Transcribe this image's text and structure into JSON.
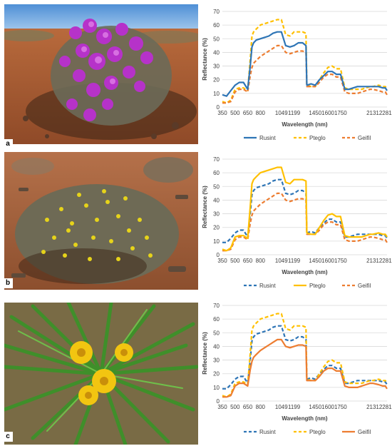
{
  "colors": {
    "Rusint": "#2e75b6",
    "Pteglo": "#ffc000",
    "Geifil": "#ed7d31"
  },
  "panels": [
    {
      "letter": "a",
      "photo": "purple flowering shrub in arid red-soil landscape",
      "chart_data": {
        "type": "line",
        "xlabel": "Wavelength (nm)",
        "ylabel": "Reflectance (%)",
        "ylim": [
          0,
          70
        ],
        "yticks": [
          0,
          10,
          20,
          30,
          40,
          50,
          60,
          70
        ],
        "xlim": [
          350,
          2300
        ],
        "xticks": [
          350,
          500,
          650,
          800,
          1049,
          1199,
          1450,
          1600,
          1750,
          2131,
          2281
        ],
        "xtick_labels": [
          "350",
          "500",
          "650",
          "800",
          "1049",
          "1199",
          "1450",
          "1600",
          "1750",
          "2131",
          "2281"
        ],
        "legend_position": "bottom",
        "series": [
          {
            "name": "Rusint",
            "style": "solid",
            "x": [
              350,
              400,
              450,
              500,
              550,
              600,
              650,
              680,
              700,
              720,
              750,
              800,
              850,
              900,
              950,
              1000,
              1049,
              1100,
              1150,
              1199,
              1250,
              1300,
              1340,
              1350,
              1400,
              1450,
              1500,
              1550,
              1600,
              1650,
              1700,
              1750,
              1800,
              1850,
              1950,
              2000,
              2050,
              2100,
              2131,
              2200,
              2250,
              2281,
              2300
            ],
            "y": [
              9,
              8,
              12,
              16,
              18,
              18,
              13,
              30,
              44,
              47,
              49,
              50,
              51,
              52,
              54,
              55,
              55,
              45,
              44,
              45,
              47,
              47,
              45,
              16,
              17,
              16,
              20,
              23,
              26,
              26,
              24,
              24,
              13,
              13,
              15,
              15,
              15,
              15,
              15,
              15,
              14,
              14,
              12
            ]
          },
          {
            "name": "Pteglo",
            "style": "dashed",
            "x": [
              350,
              400,
              450,
              500,
              550,
              600,
              650,
              680,
              700,
              720,
              750,
              800,
              850,
              900,
              950,
              1000,
              1049,
              1100,
              1150,
              1199,
              1250,
              1300,
              1340,
              1350,
              1400,
              1450,
              1500,
              1550,
              1600,
              1650,
              1700,
              1750,
              1800,
              1850,
              1950,
              2000,
              2050,
              2100,
              2131,
              2200,
              2250,
              2281,
              2300
            ],
            "y": [
              4,
              3,
              5,
              13,
              14,
              14,
              12,
              35,
              52,
              55,
              57,
              60,
              61,
              62,
              63,
              64,
              64,
              53,
              52,
              55,
              55,
              55,
              54,
              16,
              15,
              15,
              20,
              25,
              29,
              30,
              28,
              28,
              14,
              13,
              13,
              13,
              14,
              15,
              15,
              16,
              15,
              15,
              13
            ]
          },
          {
            "name": "Geifil",
            "style": "dashed",
            "x": [
              350,
              400,
              450,
              500,
              550,
              600,
              650,
              680,
              700,
              720,
              750,
              800,
              850,
              900,
              950,
              1000,
              1049,
              1100,
              1150,
              1199,
              1250,
              1300,
              1340,
              1350,
              1400,
              1450,
              1500,
              1550,
              1600,
              1650,
              1700,
              1750,
              1800,
              1850,
              1950,
              2000,
              2050,
              2100,
              2131,
              2200,
              2250,
              2281,
              2300
            ],
            "y": [
              3,
              3,
              4,
              11,
              13,
              13,
              11,
              23,
              29,
              32,
              34,
              37,
              39,
              41,
              43,
              45,
              45,
              40,
              39,
              40,
              41,
              41,
              40,
              15,
              15,
              15,
              18,
              22,
              24,
              24,
              22,
              22,
              11,
              10,
              10,
              11,
              12,
              13,
              13,
              12,
              11,
              11,
              9
            ]
          }
        ]
      }
    },
    {
      "letter": "b",
      "photo": "yellow flowering shrub in arid stony landscape",
      "chart_data": {
        "type": "line",
        "xlabel": "Wavelength (nm)",
        "ylabel": "Reflectance (%)",
        "ylim": [
          0,
          70
        ],
        "yticks": [
          0,
          10,
          20,
          30,
          40,
          50,
          60,
          70
        ],
        "xlim": [
          350,
          2300
        ],
        "xticks": [
          350,
          500,
          650,
          800,
          1049,
          1199,
          1450,
          1600,
          1750,
          2131,
          2281
        ],
        "xtick_labels": [
          "350",
          "500",
          "650",
          "800",
          "1049",
          "1199",
          "1450",
          "1600",
          "1750",
          "2131",
          "2281"
        ],
        "legend_position": "bottom",
        "series": [
          {
            "name": "Rusint",
            "style": "dashed",
            "x": [
              350,
              400,
              450,
              500,
              550,
              600,
              650,
              680,
              700,
              720,
              750,
              800,
              850,
              900,
              950,
              1000,
              1049,
              1100,
              1150,
              1199,
              1250,
              1300,
              1340,
              1350,
              1400,
              1450,
              1500,
              1550,
              1600,
              1650,
              1700,
              1750,
              1800,
              1850,
              1950,
              2000,
              2050,
              2100,
              2131,
              2200,
              2250,
              2281,
              2300
            ],
            "y": [
              9,
              9,
              12,
              16,
              18,
              18,
              13,
              30,
              44,
              47,
              49,
              50,
              51,
              52,
              54,
              55,
              55,
              45,
              44,
              45,
              47,
              47,
              45,
              16,
              17,
              16,
              20,
              23,
              26,
              26,
              24,
              24,
              13,
              13,
              15,
              15,
              15,
              15,
              15,
              15,
              14,
              14,
              12
            ]
          },
          {
            "name": "Pteglo",
            "style": "solid",
            "x": [
              350,
              400,
              450,
              500,
              550,
              600,
              650,
              680,
              700,
              720,
              750,
              800,
              850,
              900,
              950,
              1000,
              1049,
              1100,
              1150,
              1199,
              1250,
              1300,
              1340,
              1350,
              1400,
              1450,
              1500,
              1550,
              1600,
              1650,
              1700,
              1750,
              1800,
              1850,
              1950,
              2000,
              2050,
              2100,
              2131,
              2200,
              2250,
              2281,
              2300
            ],
            "y": [
              4,
              3,
              5,
              13,
              14,
              14,
              12,
              35,
              52,
              55,
              57,
              60,
              61,
              62,
              63,
              64,
              64,
              53,
              52,
              55,
              55,
              55,
              54,
              16,
              15,
              15,
              20,
              25,
              29,
              30,
              28,
              28,
              14,
              13,
              13,
              13,
              14,
              15,
              15,
              16,
              15,
              15,
              13
            ]
          },
          {
            "name": "Geifil",
            "style": "dashed",
            "x": [
              350,
              400,
              450,
              500,
              550,
              600,
              650,
              680,
              700,
              720,
              750,
              800,
              850,
              900,
              950,
              1000,
              1049,
              1100,
              1150,
              1199,
              1250,
              1300,
              1340,
              1350,
              1400,
              1450,
              1500,
              1550,
              1600,
              1650,
              1700,
              1750,
              1800,
              1850,
              1950,
              2000,
              2050,
              2100,
              2131,
              2200,
              2250,
              2281,
              2300
            ],
            "y": [
              3,
              3,
              4,
              11,
              13,
              13,
              11,
              23,
              29,
              32,
              34,
              37,
              39,
              41,
              43,
              45,
              45,
              40,
              39,
              40,
              41,
              41,
              40,
              15,
              15,
              15,
              18,
              22,
              24,
              24,
              22,
              22,
              11,
              10,
              10,
              11,
              12,
              13,
              13,
              12,
              11,
              11,
              9
            ]
          }
        ]
      }
    },
    {
      "letter": "c",
      "photo": "close-up of yellow flower heads with long narrow green leaves",
      "chart_data": {
        "type": "line",
        "xlabel": "Wavelength (nm)",
        "ylabel": "Reflectance (%)",
        "ylim": [
          0,
          70
        ],
        "yticks": [
          0,
          10,
          20,
          30,
          40,
          50,
          60,
          70
        ],
        "xlim": [
          350,
          2300
        ],
        "xticks": [
          350,
          500,
          650,
          800,
          1049,
          1199,
          1450,
          1600,
          1750,
          2131,
          2281
        ],
        "xtick_labels": [
          "350",
          "500",
          "650",
          "800",
          "1049",
          "1199",
          "1450",
          "1600",
          "1750",
          "2131",
          "2281"
        ],
        "legend_position": "bottom",
        "series": [
          {
            "name": "Rusint",
            "style": "dashed",
            "x": [
              350,
              400,
              450,
              500,
              550,
              600,
              650,
              680,
              700,
              720,
              750,
              800,
              850,
              900,
              950,
              1000,
              1049,
              1100,
              1150,
              1199,
              1250,
              1300,
              1340,
              1350,
              1400,
              1450,
              1500,
              1550,
              1600,
              1650,
              1700,
              1750,
              1800,
              1850,
              1950,
              2000,
              2050,
              2100,
              2131,
              2200,
              2250,
              2281,
              2300
            ],
            "y": [
              9,
              9,
              12,
              16,
              18,
              18,
              13,
              30,
              44,
              47,
              49,
              50,
              51,
              52,
              54,
              55,
              55,
              45,
              44,
              45,
              47,
              47,
              45,
              16,
              17,
              16,
              20,
              23,
              26,
              26,
              24,
              24,
              13,
              13,
              15,
              15,
              15,
              15,
              15,
              15,
              14,
              14,
              12
            ]
          },
          {
            "name": "Pteglo",
            "style": "dashed",
            "x": [
              350,
              400,
              450,
              500,
              550,
              600,
              650,
              680,
              700,
              720,
              750,
              800,
              850,
              900,
              950,
              1000,
              1049,
              1100,
              1150,
              1199,
              1250,
              1300,
              1340,
              1350,
              1400,
              1450,
              1500,
              1550,
              1600,
              1650,
              1700,
              1750,
              1800,
              1850,
              1950,
              2000,
              2050,
              2100,
              2131,
              2200,
              2250,
              2281,
              2300
            ],
            "y": [
              4,
              3,
              5,
              13,
              14,
              14,
              12,
              35,
              52,
              55,
              57,
              60,
              61,
              62,
              63,
              64,
              64,
              53,
              52,
              55,
              55,
              55,
              54,
              16,
              15,
              15,
              20,
              25,
              29,
              30,
              28,
              28,
              14,
              13,
              13,
              13,
              14,
              15,
              15,
              16,
              15,
              15,
              13
            ]
          },
          {
            "name": "Geifil",
            "style": "solid",
            "x": [
              350,
              400,
              450,
              500,
              550,
              600,
              650,
              680,
              700,
              720,
              750,
              800,
              850,
              900,
              950,
              1000,
              1049,
              1100,
              1150,
              1199,
              1250,
              1300,
              1340,
              1350,
              1400,
              1450,
              1500,
              1550,
              1600,
              1650,
              1700,
              1750,
              1800,
              1850,
              1950,
              2000,
              2050,
              2100,
              2131,
              2200,
              2250,
              2281,
              2300
            ],
            "y": [
              3,
              3,
              4,
              11,
              13,
              13,
              11,
              23,
              29,
              32,
              34,
              37,
              39,
              41,
              43,
              45,
              45,
              40,
              39,
              40,
              41,
              41,
              40,
              15,
              15,
              15,
              18,
              22,
              24,
              24,
              22,
              22,
              11,
              10,
              10,
              11,
              12,
              13,
              13,
              12,
              11,
              11,
              9
            ]
          }
        ]
      }
    }
  ]
}
